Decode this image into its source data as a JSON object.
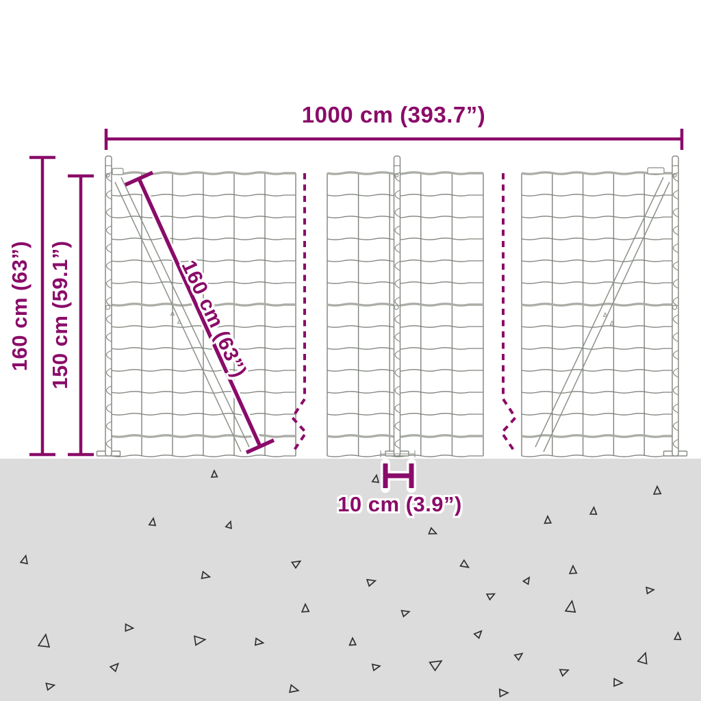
{
  "product": {
    "subject": "wire mesh fence with flange posts",
    "ground_marker_icon": "triangle-marker"
  },
  "dimensions": {
    "total_width": {
      "label": "1000 cm (393.7”)"
    },
    "total_height": {
      "label": "160 cm (63”)"
    },
    "height_above_ground": {
      "label": "150 cm (59.1”)"
    },
    "mesh_roll_height": {
      "label": "160 cm (63”)"
    },
    "base_plate_width": {
      "label": "10 cm (3.9”)"
    }
  },
  "colors": {
    "accent": "#8a0b69",
    "background": "#ffffff",
    "ground": "#dcdcdc",
    "wire": "#7d827a",
    "rail": "#aaaea6",
    "post_outline": "#878c83",
    "post_fill": "#ffffff",
    "triangle_outline": "#2f2f2f",
    "detail_gray": "#8d9289"
  }
}
